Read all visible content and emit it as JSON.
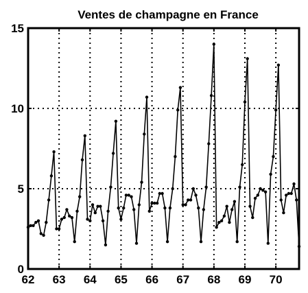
{
  "chart_data": {
    "type": "line",
    "title": "Ventes de champagne en France",
    "xlabel": "",
    "ylabel": "",
    "xlim": [
      62,
      70.75
    ],
    "ylim": [
      0,
      15
    ],
    "x_ticks": [
      62,
      63,
      64,
      65,
      66,
      67,
      68,
      69,
      70
    ],
    "y_ticks": [
      0,
      5,
      10,
      15
    ],
    "x_tick_labels": [
      "62",
      "63",
      "64",
      "65",
      "66",
      "67",
      "68",
      "69",
      "70"
    ],
    "y_tick_labels": [
      "0",
      "5",
      "10",
      "15"
    ],
    "grid": "dotted",
    "x_start": 62,
    "x_step": 0.08333,
    "series": [
      {
        "values": [
          2.6,
          2.7,
          2.7,
          2.9,
          3.0,
          2.2,
          2.1,
          2.9,
          4.3,
          5.8,
          7.3,
          2.5,
          2.5,
          3.1,
          3.2,
          3.7,
          3.3,
          3.2,
          1.7,
          3.6,
          4.5,
          6.8,
          8.3,
          3.1,
          3.0,
          4.0,
          3.5,
          3.9,
          3.9,
          3.0,
          1.5,
          3.6,
          5.1,
          7.2,
          9.2,
          3.8,
          3.1,
          3.8,
          4.6,
          4.6,
          4.5,
          3.7,
          1.6,
          4.0,
          5.4,
          8.4,
          10.7,
          3.6,
          4.1,
          4.1,
          4.1,
          4.7,
          4.7,
          3.8,
          1.7,
          3.8,
          5.0,
          7.0,
          9.9,
          11.3,
          4.0,
          4.0,
          4.3,
          4.3,
          5.0,
          4.6,
          3.8,
          1.7,
          3.7,
          5.1,
          7.8,
          10.8,
          14.0,
          2.6,
          2.9,
          3.0,
          3.3,
          3.9,
          2.9,
          3.7,
          4.2,
          1.7,
          5.1,
          6.5,
          10.4,
          13.1,
          3.9,
          3.2,
          4.4,
          4.6,
          5.0,
          4.9,
          4.8,
          1.6,
          5.9,
          7.0,
          9.9,
          12.7,
          4.3,
          3.5,
          4.6,
          4.7,
          4.7,
          5.3,
          4.3,
          1.4
        ]
      }
    ]
  },
  "colors": {
    "line": "#000000",
    "grid": "#000000",
    "background": "#ffffff"
  }
}
